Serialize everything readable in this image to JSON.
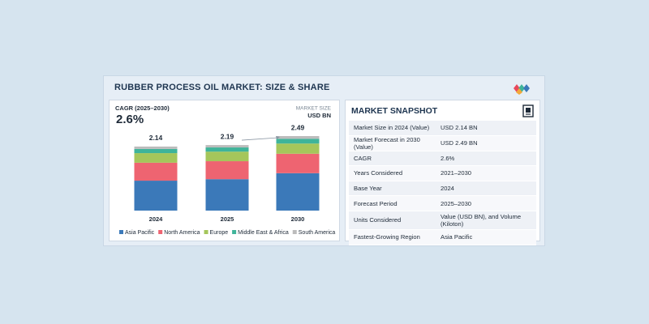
{
  "title": "RUBBER PROCESS OIL MARKET: SIZE & SHARE",
  "cagr": {
    "label": "CAGR (2025–2030)",
    "value": "2.6%"
  },
  "unit": {
    "label": "MARKET SIZE",
    "value": "USD BN"
  },
  "chart_data": {
    "type": "stacked-bar",
    "categories": [
      "2024",
      "2025",
      "2030"
    ],
    "series": [
      {
        "name": "Asia Pacific",
        "color": "#3b79b9",
        "values": [
          1.0,
          1.05,
          1.25
        ]
      },
      {
        "name": "North America",
        "color": "#ee6471",
        "values": [
          0.6,
          0.6,
          0.65
        ]
      },
      {
        "name": "Europe",
        "color": "#a5c65b",
        "values": [
          0.32,
          0.32,
          0.34
        ]
      },
      {
        "name": "Middle East & Africa",
        "color": "#3fb49a",
        "values": [
          0.14,
          0.14,
          0.16
        ]
      },
      {
        "name": "South America",
        "color": "#bcbcbc",
        "values": [
          0.08,
          0.08,
          0.09
        ]
      }
    ],
    "totals": [
      2.14,
      2.19,
      2.49
    ]
  },
  "snapshot": {
    "title": "MARKET SNAPSHOT",
    "rows": [
      [
        "Market Size in 2024 (Value)",
        "USD 2.14 BN"
      ],
      [
        "Market Forecast in 2030 (Value)",
        "USD 2.49 BN"
      ],
      [
        "CAGR",
        "2.6%"
      ],
      [
        "Years Considered",
        "2021–2030"
      ],
      [
        "Base Year",
        "2024"
      ],
      [
        "Forecast Period",
        "2025–2030"
      ],
      [
        "Units Considered",
        "Value (USD BN), and Volume (Kiloton)"
      ],
      [
        "Fastest-Growing Region",
        "Asia Pacific"
      ]
    ]
  }
}
